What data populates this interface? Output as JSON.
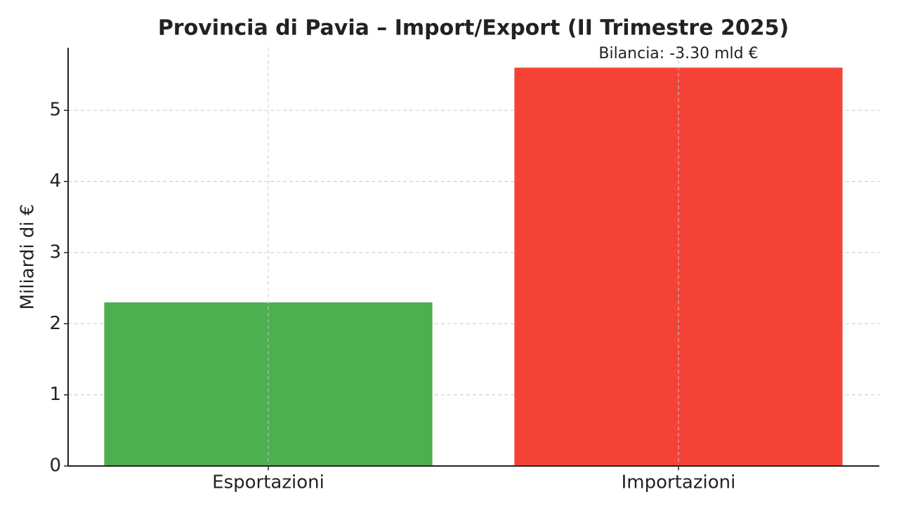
{
  "chart_data": {
    "type": "bar",
    "title": "Provincia di Pavia – Import/Export (II Trimestre 2025)",
    "y_label": "Miliardi di €",
    "annotation": "Bilancia: -3.30 mld €",
    "categories": [
      "Esportazioni",
      "Importazioni"
    ],
    "values": [
      2.3,
      5.6
    ],
    "colors": [
      "#4caf50",
      "#f44336"
    ],
    "ylim": [
      0,
      5.88
    ],
    "yticks": [
      0,
      1,
      2,
      3,
      4,
      5
    ],
    "grid": true
  }
}
